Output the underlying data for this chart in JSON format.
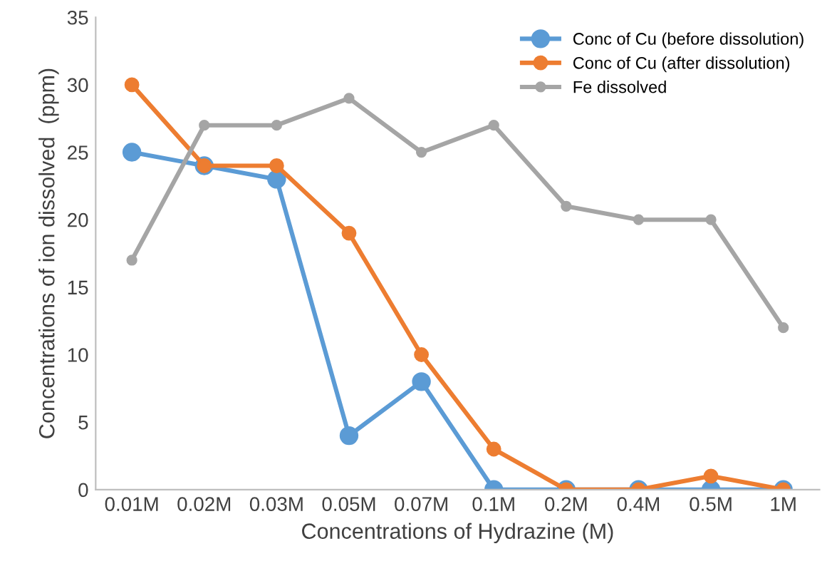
{
  "chart_data": {
    "type": "line",
    "xlabel": "Concentrations of Hydrazine (M)",
    "ylabel": "Concentrations of ion dissolved  (ppm)",
    "categories": [
      "0.01M",
      "0.02M",
      "0.03M",
      "0.05M",
      "0.07M",
      "0.1M",
      "0.2M",
      "0.4M",
      "0.5M",
      "1M"
    ],
    "series": [
      {
        "name": "Conc of Cu (before dissolution)",
        "color": "#5b9bd5",
        "values": [
          25,
          24,
          23,
          4,
          8,
          0,
          0,
          0,
          0,
          0
        ]
      },
      {
        "name": "Conc of Cu (after dissolution)",
        "color": "#ed7d31",
        "values": [
          30,
          24,
          24,
          19,
          10,
          3,
          0,
          0,
          1,
          0
        ]
      },
      {
        "name": "Fe dissolved",
        "color": "#a5a5a5",
        "values": [
          17,
          27,
          27,
          29,
          25,
          27,
          21,
          20,
          20,
          12
        ]
      }
    ],
    "ylim": [
      0,
      35
    ],
    "yticks": [
      0,
      5,
      10,
      15,
      20,
      25,
      30,
      35
    ],
    "grid": false,
    "legend": "top right",
    "marker": "circle",
    "line_style": "solid"
  }
}
